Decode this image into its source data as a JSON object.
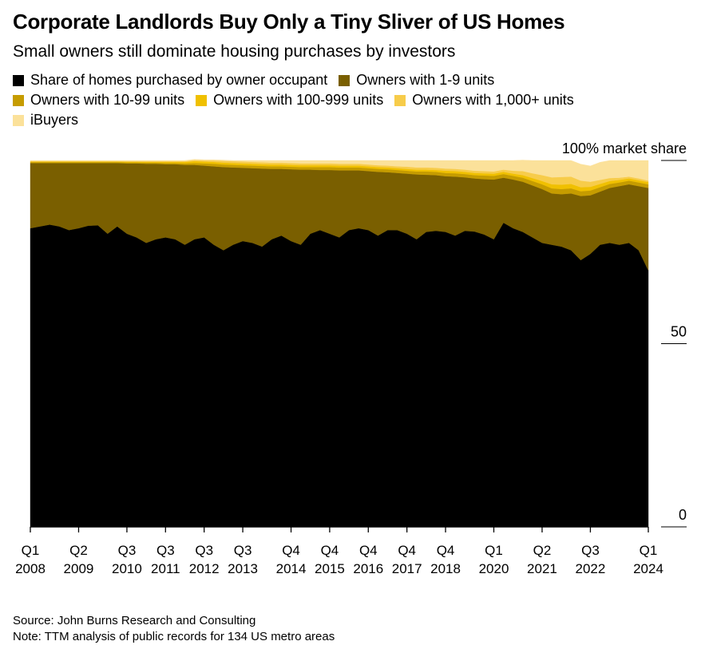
{
  "title": "Corporate Landlords Buy Only a Tiny Sliver of US Homes",
  "subtitle": "Small owners still dominate housing purchases by investors",
  "footer": {
    "source": "Source: John Burns Research and Consulting",
    "note": "Note: TTM analysis of public records for 134 US metro areas"
  },
  "chart_data": {
    "type": "area",
    "stacked": true,
    "y_axis_label": "100% market share",
    "y_ticks": [
      {
        "value": 100,
        "label": "100% market share"
      },
      {
        "value": 50,
        "label": "50"
      },
      {
        "value": 0,
        "label": "0"
      }
    ],
    "ylim": [
      0,
      100
    ],
    "x_start": 2008.0,
    "x_end": 2024.0,
    "x_ticks": [
      {
        "q": "Q1",
        "year": "2008",
        "x": 2008.0
      },
      {
        "q": "Q2",
        "year": "2009",
        "x": 2009.25
      },
      {
        "q": "Q3",
        "year": "2010",
        "x": 2010.5
      },
      {
        "q": "Q3",
        "year": "2011",
        "x": 2011.5
      },
      {
        "q": "Q3",
        "year": "2012",
        "x": 2012.5
      },
      {
        "q": "Q3",
        "year": "2013",
        "x": 2013.5
      },
      {
        "q": "Q4",
        "year": "2014",
        "x": 2014.75
      },
      {
        "q": "Q4",
        "year": "2015",
        "x": 2015.75
      },
      {
        "q": "Q4",
        "year": "2016",
        "x": 2016.75
      },
      {
        "q": "Q4",
        "year": "2017",
        "x": 2017.75
      },
      {
        "q": "Q4",
        "year": "2018",
        "x": 2018.75
      },
      {
        "q": "Q1",
        "year": "2020",
        "x": 2020.0
      },
      {
        "q": "Q2",
        "year": "2021",
        "x": 2021.25
      },
      {
        "q": "Q3",
        "year": "2022",
        "x": 2022.5
      },
      {
        "q": "Q1",
        "year": "2024",
        "x": 2024.0
      }
    ],
    "x": [
      2008.0,
      2008.25,
      2008.5,
      2008.75,
      2009.0,
      2009.25,
      2009.5,
      2009.75,
      2010.0,
      2010.25,
      2010.5,
      2010.75,
      2011.0,
      2011.25,
      2011.5,
      2011.75,
      2012.0,
      2012.25,
      2012.5,
      2012.75,
      2013.0,
      2013.25,
      2013.5,
      2013.75,
      2014.0,
      2014.25,
      2014.5,
      2014.75,
      2015.0,
      2015.25,
      2015.5,
      2015.75,
      2016.0,
      2016.25,
      2016.5,
      2016.75,
      2017.0,
      2017.25,
      2017.5,
      2017.75,
      2018.0,
      2018.25,
      2018.5,
      2018.75,
      2019.0,
      2019.25,
      2019.5,
      2019.75,
      2020.0,
      2020.25,
      2020.5,
      2020.75,
      2021.0,
      2021.25,
      2021.5,
      2021.75,
      2022.0,
      2022.25,
      2022.5,
      2022.75,
      2023.0,
      2023.25,
      2023.5,
      2023.75,
      2024.0
    ],
    "series": [
      {
        "name": "Share of homes purchased by owner occupant",
        "color": "#000000",
        "values": [
          81.5,
          82.0,
          82.5,
          82.0,
          81.0,
          81.5,
          82.2,
          82.3,
          80.0,
          82.0,
          80.0,
          79.0,
          77.5,
          78.5,
          79.0,
          78.5,
          77.0,
          78.5,
          79.0,
          77.0,
          75.5,
          77.0,
          78.0,
          77.5,
          76.5,
          78.5,
          79.5,
          78.0,
          77.0,
          80.0,
          81.0,
          80.0,
          79.0,
          81.0,
          81.5,
          81.0,
          79.5,
          81.0,
          81.0,
          80.0,
          78.5,
          80.5,
          80.8,
          80.5,
          79.5,
          80.8,
          80.6,
          79.8,
          78.5,
          83.0,
          81.5,
          80.5,
          79.0,
          77.5,
          77.0,
          76.5,
          75.5,
          72.8,
          74.5,
          77.0,
          77.5,
          77.0,
          77.5,
          75.5,
          70.0
        ]
      },
      {
        "name": "Owners with 1-9 units",
        "color": "#7a5f00",
        "values": [
          17.8,
          17.3,
          16.8,
          17.3,
          18.3,
          17.8,
          17.1,
          17.0,
          19.3,
          17.3,
          19.2,
          20.2,
          21.6,
          20.6,
          20.0,
          20.5,
          21.8,
          20.3,
          19.6,
          21.4,
          22.7,
          21.1,
          20.0,
          20.4,
          21.3,
          19.2,
          18.2,
          19.6,
          20.5,
          17.5,
          16.4,
          17.4,
          18.3,
          16.3,
          15.8,
          16.1,
          17.4,
          15.8,
          15.6,
          16.4,
          17.7,
          15.6,
          15.2,
          15.2,
          16.1,
          14.6,
          14.5,
          15.1,
          16.3,
          12.3,
          13.3,
          13.7,
          14.2,
          14.7,
          14.0,
          14.3,
          15.5,
          17.5,
          16.0,
          14.5,
          15.0,
          16.0,
          16.0,
          17.5,
          22.5
        ]
      },
      {
        "name": "Owners with 10-99 units",
        "color": "#c69c00",
        "values": [
          0.25,
          0.25,
          0.25,
          0.25,
          0.25,
          0.25,
          0.25,
          0.25,
          0.25,
          0.25,
          0.25,
          0.25,
          0.3,
          0.3,
          0.3,
          0.3,
          0.4,
          0.5,
          0.6,
          0.7,
          0.7,
          0.7,
          0.7,
          0.7,
          0.7,
          0.7,
          0.7,
          0.7,
          0.7,
          0.7,
          0.8,
          0.8,
          0.8,
          0.8,
          0.8,
          0.8,
          0.8,
          0.8,
          0.8,
          0.8,
          0.8,
          0.9,
          0.9,
          0.9,
          0.9,
          0.9,
          0.9,
          1.0,
          1.0,
          1.0,
          1.0,
          1.1,
          1.2,
          1.3,
          1.4,
          1.4,
          1.4,
          1.3,
          1.3,
          1.2,
          1.1,
          1.0,
          1.0,
          1.0,
          1.0
        ]
      },
      {
        "name": "Owners with 100-999 units",
        "color": "#f0c000",
        "values": [
          0.15,
          0.15,
          0.15,
          0.15,
          0.15,
          0.15,
          0.15,
          0.15,
          0.15,
          0.15,
          0.2,
          0.2,
          0.2,
          0.2,
          0.3,
          0.3,
          0.4,
          0.5,
          0.5,
          0.5,
          0.5,
          0.5,
          0.5,
          0.5,
          0.5,
          0.5,
          0.5,
          0.5,
          0.5,
          0.5,
          0.5,
          0.5,
          0.5,
          0.5,
          0.5,
          0.5,
          0.5,
          0.5,
          0.5,
          0.5,
          0.5,
          0.5,
          0.5,
          0.6,
          0.6,
          0.6,
          0.6,
          0.6,
          0.6,
          0.6,
          0.6,
          0.7,
          0.8,
          0.9,
          1.1,
          1.2,
          1.2,
          1.1,
          1.0,
          0.9,
          0.8,
          0.7,
          0.6,
          0.6,
          0.6
        ]
      },
      {
        "name": "Owners with 1,000+ units",
        "color": "#f7cc4a",
        "values": [
          0.1,
          0.1,
          0.1,
          0.1,
          0.1,
          0.1,
          0.1,
          0.1,
          0.1,
          0.1,
          0.15,
          0.15,
          0.2,
          0.2,
          0.2,
          0.2,
          0.2,
          0.3,
          0.3,
          0.4,
          0.5,
          0.5,
          0.5,
          0.5,
          0.5,
          0.5,
          0.5,
          0.5,
          0.5,
          0.5,
          0.5,
          0.5,
          0.5,
          0.5,
          0.5,
          0.5,
          0.5,
          0.5,
          0.5,
          0.6,
          0.6,
          0.6,
          0.6,
          0.6,
          0.6,
          0.6,
          0.6,
          0.6,
          0.6,
          0.6,
          0.8,
          1.1,
          1.3,
          1.6,
          1.9,
          2.1,
          2.0,
          1.8,
          1.4,
          1.1,
          0.8,
          0.6,
          0.5,
          0.5,
          0.4
        ]
      },
      {
        "name": "iBuyers",
        "color": "#fbe19a",
        "values": [
          0.2,
          0.2,
          0.2,
          0.2,
          0.2,
          0.2,
          0.2,
          0.2,
          0.2,
          0.2,
          0.2,
          0.2,
          0.2,
          0.2,
          0.2,
          0.2,
          0.2,
          0.2,
          0.2,
          0.2,
          0.2,
          0.2,
          0.3,
          0.4,
          0.5,
          0.6,
          0.6,
          0.7,
          0.8,
          0.8,
          0.8,
          0.8,
          0.9,
          0.9,
          0.9,
          1.1,
          1.3,
          1.4,
          1.6,
          1.7,
          1.9,
          1.9,
          2.0,
          2.2,
          2.3,
          2.5,
          2.8,
          2.9,
          3.0,
          2.5,
          2.8,
          3.0,
          3.5,
          4.0,
          4.6,
          4.5,
          4.4,
          4.5,
          4.3,
          4.8,
          4.8,
          4.7,
          4.4,
          4.9,
          5.5
        ]
      }
    ]
  }
}
